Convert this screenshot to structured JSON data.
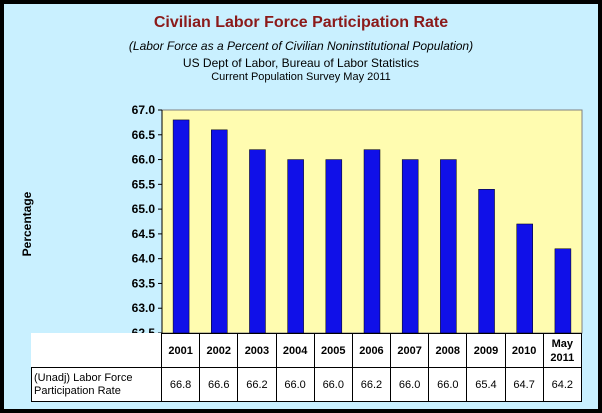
{
  "chart_data": {
    "type": "bar",
    "title": "Civilian Labor Force Participation Rate",
    "subtitle": "(Labor Force as a Percent of Civilian Noninstitutional Population)",
    "source": "US Dept of Labor, Bureau of Labor Statistics",
    "survey": "Current Population Survey  May 2011",
    "ylabel": "Percentage",
    "xlabel": "",
    "ylim": [
      62.5,
      67.0
    ],
    "yticks": [
      "62.5",
      "63.0",
      "63.5",
      "64.0",
      "64.5",
      "65.0",
      "65.5",
      "66.0",
      "66.5",
      "67.0"
    ],
    "categories": [
      "2001",
      "2002",
      "2003",
      "2004",
      "2005",
      "2006",
      "2007",
      "2008",
      "2009",
      "2010",
      "May 2011"
    ],
    "values": [
      66.8,
      66.6,
      66.2,
      66.0,
      66.0,
      66.2,
      66.0,
      66.0,
      65.4,
      64.7,
      64.2
    ],
    "value_labels": [
      "66.8",
      "66.6",
      "66.2",
      "66.0",
      "66.0",
      "66.2",
      "66.0",
      "66.0",
      "65.4",
      "64.7",
      "64.2"
    ],
    "series_label": "(Unadj) Labor Force Participation Rate",
    "grid": false,
    "legend": "table-below",
    "colors": {
      "bar": "#1010e8",
      "plot_bg": "#fffcb0",
      "chart_bg": "#c9f0ff",
      "title": "#8b1a1a"
    }
  }
}
